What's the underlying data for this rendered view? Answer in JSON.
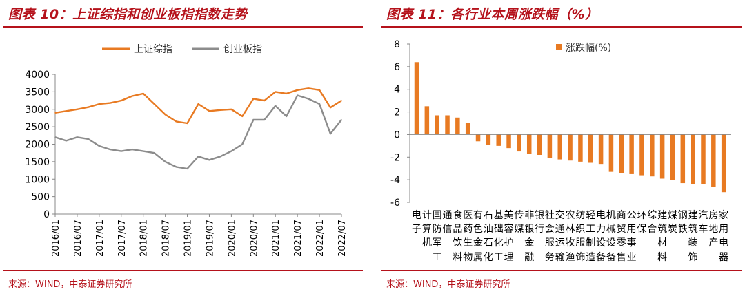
{
  "left_panel": {
    "title": "图表 10：上证综指和创业板指指数走势",
    "source": "来源：WIND，中泰证券研究所"
  },
  "right_panel": {
    "title": "图表 11：各行业本周涨跌幅（%）",
    "source": "来源：WIND，中泰证券研究所"
  },
  "colors": {
    "orange": "#e87a22",
    "gray": "#8c8c8c",
    "title_red": "#b5121b"
  },
  "chart_data": [
    {
      "type": "line",
      "title": "",
      "xlabel": "",
      "ylabel": "",
      "ylim": [
        0,
        4000
      ],
      "yticks": [
        0,
        500,
        1000,
        1500,
        2000,
        2500,
        3000,
        3500,
        4000
      ],
      "x_tick_labels": [
        "2016/01",
        "2016/07",
        "2017/01",
        "2017/07",
        "2018/01",
        "2018/07",
        "2019/01",
        "2019/07",
        "2020/01",
        "2020/07",
        "2021/01",
        "2021/07",
        "2022/01",
        "2022/07"
      ],
      "legend_position": "top-center",
      "series": [
        {
          "name": "上证综指",
          "color": "#e87a22",
          "x": [
            "2016/01",
            "2016/04",
            "2016/07",
            "2016/10",
            "2017/01",
            "2017/04",
            "2017/07",
            "2017/10",
            "2018/01",
            "2018/04",
            "2018/07",
            "2018/10",
            "2019/01",
            "2019/04",
            "2019/07",
            "2019/10",
            "2020/01",
            "2020/04",
            "2020/07",
            "2020/10",
            "2021/01",
            "2021/04",
            "2021/07",
            "2021/10",
            "2022/01",
            "2022/04",
            "2022/07"
          ],
          "values": [
            2900,
            2950,
            3000,
            3060,
            3150,
            3180,
            3250,
            3380,
            3450,
            3150,
            2850,
            2650,
            2600,
            3150,
            2950,
            2980,
            3000,
            2800,
            3300,
            3250,
            3500,
            3450,
            3550,
            3600,
            3550,
            3050,
            3250
          ]
        },
        {
          "name": "创业板指",
          "color": "#8c8c8c",
          "x": [
            "2016/01",
            "2016/04",
            "2016/07",
            "2016/10",
            "2017/01",
            "2017/04",
            "2017/07",
            "2017/10",
            "2018/01",
            "2018/04",
            "2018/07",
            "2018/10",
            "2019/01",
            "2019/04",
            "2019/07",
            "2019/10",
            "2020/01",
            "2020/04",
            "2020/07",
            "2020/10",
            "2021/01",
            "2021/04",
            "2021/07",
            "2021/10",
            "2022/01",
            "2022/04",
            "2022/07"
          ],
          "values": [
            2200,
            2100,
            2200,
            2150,
            1950,
            1850,
            1800,
            1850,
            1800,
            1750,
            1500,
            1350,
            1300,
            1650,
            1550,
            1650,
            1800,
            2000,
            2700,
            2700,
            3100,
            2800,
            3400,
            3300,
            3150,
            2300,
            2700
          ]
        }
      ]
    },
    {
      "type": "bar",
      "title": "",
      "xlabel": "",
      "ylabel": "",
      "ylim": [
        -6,
        8
      ],
      "yticks": [
        -6,
        -4,
        -2,
        0,
        2,
        4,
        6,
        8
      ],
      "legend_position": "top-right",
      "series": [
        {
          "name": "涨跌幅(%)",
          "color": "#e87a22"
        }
      ],
      "categories": [
        "电子",
        "计算机",
        "国防军工",
        "通信",
        "食品饮料",
        "医药生物",
        "有色金属",
        "石油石化",
        "基础化工",
        "美容护理",
        "传媒",
        "非银金融",
        "银行",
        "社会服务",
        "交通运输",
        "农林牧渔",
        "纺织服饰",
        "轻工制造",
        "电力设备",
        "机械设备",
        "商贸零售",
        "公用事业",
        "环保",
        "综合",
        "建筑材料",
        "煤炭",
        "钢铁",
        "建筑装饰",
        "汽车",
        "房地产",
        "家用电器"
      ],
      "label_lines": [
        [
          "电",
          "子",
          "",
          ""
        ],
        [
          "计",
          "算",
          "机",
          ""
        ],
        [
          "国",
          "防",
          "军",
          "工"
        ],
        [
          "通",
          "信",
          "",
          ""
        ],
        [
          "食",
          "品",
          "饮",
          "料"
        ],
        [
          "医",
          "药",
          "生",
          "物"
        ],
        [
          "有",
          "色",
          "金",
          "属"
        ],
        [
          "石",
          "油",
          "石",
          "化"
        ],
        [
          "基",
          "础",
          "化",
          "工"
        ],
        [
          "美",
          "容",
          "护",
          "理"
        ],
        [
          "传",
          "媒",
          "",
          ""
        ],
        [
          "非",
          "银",
          "金",
          "融"
        ],
        [
          "银",
          "行",
          "",
          ""
        ],
        [
          "社",
          "会",
          "服",
          "务"
        ],
        [
          "交",
          "通",
          "运",
          "输"
        ],
        [
          "农",
          "林",
          "牧",
          "渔"
        ],
        [
          "纺",
          "织",
          "服",
          "饰"
        ],
        [
          "轻",
          "工",
          "制",
          "造"
        ],
        [
          "电",
          "力",
          "设",
          "备"
        ],
        [
          "机",
          "械",
          "设",
          "备"
        ],
        [
          "商",
          "贸",
          "零",
          "售"
        ],
        [
          "公",
          "用",
          "事",
          "业"
        ],
        [
          "环",
          "保",
          "",
          ""
        ],
        [
          "综",
          "合",
          "",
          ""
        ],
        [
          "建",
          "筑",
          "材",
          "料"
        ],
        [
          "煤",
          "炭",
          "",
          ""
        ],
        [
          "钢",
          "铁",
          "",
          ""
        ],
        [
          "建",
          "筑",
          "装",
          "饰"
        ],
        [
          "汽",
          "车",
          "",
          ""
        ],
        [
          "房",
          "地",
          "产",
          ""
        ],
        [
          "家",
          "用",
          "电",
          "器"
        ]
      ],
      "values": [
        6.4,
        2.5,
        1.7,
        1.7,
        1.5,
        1.0,
        -0.6,
        -0.9,
        -1.0,
        -1.2,
        -1.5,
        -1.7,
        -1.8,
        -2.1,
        -2.2,
        -2.3,
        -2.4,
        -2.5,
        -2.6,
        -3.3,
        -3.4,
        -3.5,
        -3.6,
        -3.7,
        -3.9,
        -4.0,
        -4.3,
        -4.4,
        -4.4,
        -4.6,
        -5.1
      ]
    }
  ]
}
